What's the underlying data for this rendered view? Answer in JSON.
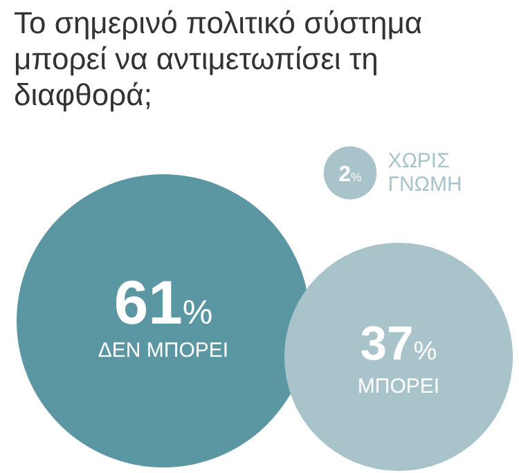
{
  "chart_data": {
    "type": "other",
    "title": "Το σημερινό πολιτικό σύστημα μπορεί να αντιμετωπίσει τη διαφθορά;",
    "categories": [
      "ΔΕΝ ΜΠΟΡΕΙ",
      "ΜΠΟΡΕΙ",
      "ΧΩΡΙΣ ΓΝΩΜΗ"
    ],
    "values": [
      61,
      37,
      2
    ],
    "value_labels": [
      "61%",
      "37%",
      "2%"
    ],
    "colors": [
      "#5b97a2",
      "#a8c3c9",
      "#a8c3c9"
    ]
  }
}
